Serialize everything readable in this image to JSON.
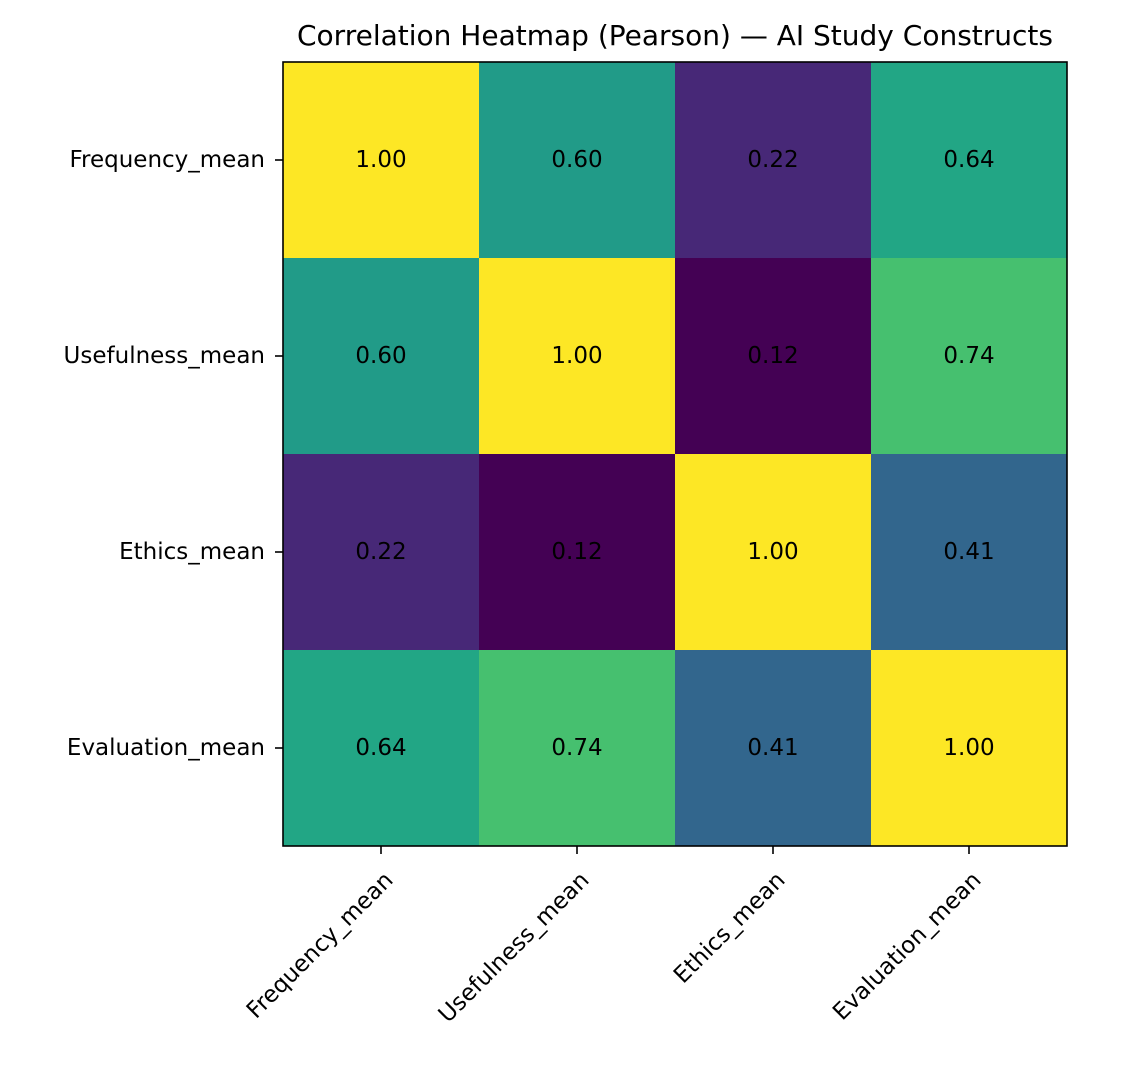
{
  "chart_data": {
    "type": "heatmap",
    "title": "Correlation Heatmap (Pearson) — AI Study Constructs",
    "xlabel": "",
    "ylabel": "",
    "rows": [
      "Frequency_mean",
      "Usefulness_mean",
      "Ethics_mean",
      "Evaluation_mean"
    ],
    "columns": [
      "Frequency_mean",
      "Usefulness_mean",
      "Ethics_mean",
      "Evaluation_mean"
    ],
    "values": [
      [
        1.0,
        0.6,
        0.22,
        0.64
      ],
      [
        0.6,
        1.0,
        0.12,
        0.74
      ],
      [
        0.22,
        0.12,
        1.0,
        0.41
      ],
      [
        0.64,
        0.74,
        0.41,
        1.0
      ]
    ],
    "value_format": "0.00",
    "colormap": "viridis",
    "colorbar": false,
    "grid": false
  }
}
